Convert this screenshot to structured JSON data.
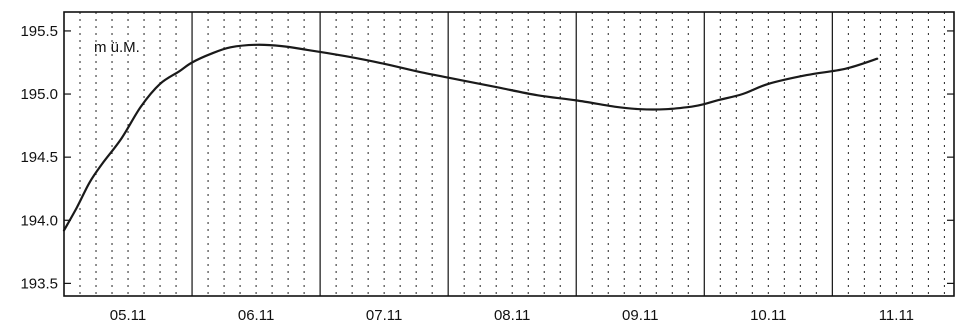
{
  "chart_data": {
    "type": "line",
    "title": "",
    "xlabel": "",
    "ylabel": "",
    "unit_label": "m ü.M.",
    "ylim": [
      193.4,
      195.65
    ],
    "yticks": [
      193.5,
      194.0,
      194.5,
      195.0,
      195.5
    ],
    "ytick_labels": [
      "193.5",
      "194.0",
      "194.5",
      "195.0",
      "195.5"
    ],
    "x_unit": "days",
    "xlim": [
      0,
      6.95
    ],
    "day_labels": [
      "05.11",
      "06.11",
      "07.11",
      "08.11",
      "09.11",
      "10.11",
      "11.11"
    ],
    "grid": "solid vertical lines at midnight, dotted vertical lines every 3 hours",
    "series": [
      {
        "color": "#1a1a1a",
        "x": [
          0.0,
          0.1,
          0.2,
          0.3,
          0.45,
          0.6,
          0.75,
          0.9,
          1.0,
          1.15,
          1.3,
          1.5,
          1.7,
          1.9,
          2.2,
          2.5,
          2.8,
          3.1,
          3.4,
          3.7,
          4.0,
          4.3,
          4.5,
          4.7,
          4.9,
          5.0,
          5.1,
          5.3,
          5.5,
          5.8,
          6.1,
          6.35
        ],
        "y": [
          193.92,
          194.1,
          194.3,
          194.45,
          194.65,
          194.9,
          195.08,
          195.18,
          195.25,
          195.32,
          195.37,
          195.39,
          195.38,
          195.35,
          195.3,
          195.24,
          195.17,
          195.11,
          195.05,
          194.99,
          194.95,
          194.9,
          194.88,
          194.88,
          194.9,
          194.92,
          194.95,
          195.0,
          195.08,
          195.15,
          195.2,
          195.28
        ]
      }
    ]
  }
}
